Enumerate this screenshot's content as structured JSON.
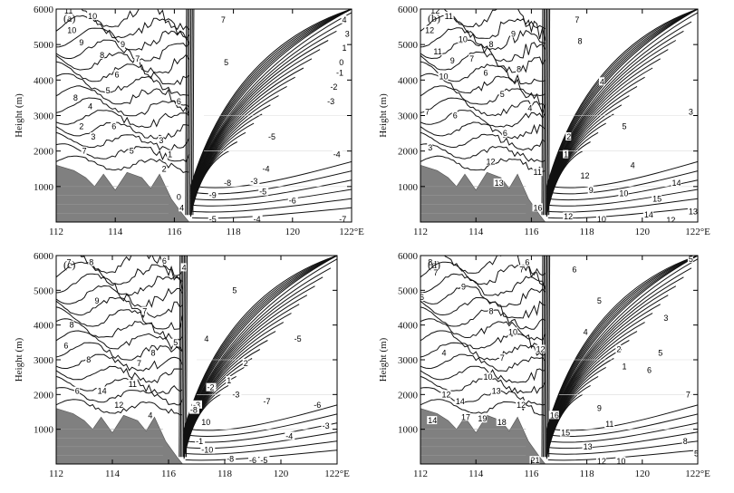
{
  "figure": {
    "ylabel": "Height (m)",
    "xunit": "°E"
  },
  "chart_data": [
    {
      "type": "contour",
      "panel_label": "(a)",
      "ylabel": "Height (m)",
      "xlim": [
        112,
        122
      ],
      "ylim": [
        0,
        6000
      ],
      "xticks": [
        "112",
        "114",
        "116",
        "118",
        "120",
        "122°E"
      ],
      "yticks": [
        "1000",
        "2000",
        "3000",
        "4000",
        "5000",
        "6000"
      ],
      "terrain": [
        [
          112,
          1600
        ],
        [
          112.6,
          1450
        ],
        [
          113,
          1250
        ],
        [
          113.3,
          1000
        ],
        [
          113.6,
          1350
        ],
        [
          114,
          900
        ],
        [
          114.4,
          1400
        ],
        [
          114.9,
          1250
        ],
        [
          115.2,
          950
        ],
        [
          115.5,
          1350
        ],
        [
          115.9,
          650
        ],
        [
          116.3,
          200
        ],
        [
          116.5,
          0
        ]
      ],
      "contour_labels": [
        {
          "text": "11",
          "x": 112.4,
          "y": 5950
        },
        {
          "text": "10",
          "x": 113.2,
          "y": 5800
        },
        {
          "text": "10",
          "x": 112.5,
          "y": 5400
        },
        {
          "text": "9",
          "x": 112.9,
          "y": 5050
        },
        {
          "text": "9",
          "x": 114.3,
          "y": 5000
        },
        {
          "text": "8",
          "x": 113.6,
          "y": 4700
        },
        {
          "text": "7",
          "x": 114.8,
          "y": 4600
        },
        {
          "text": "6",
          "x": 114.1,
          "y": 4150
        },
        {
          "text": "8",
          "x": 112.7,
          "y": 3500
        },
        {
          "text": "5",
          "x": 113.8,
          "y": 3700
        },
        {
          "text": "4",
          "x": 113.2,
          "y": 3250
        },
        {
          "text": "2",
          "x": 112.9,
          "y": 2700
        },
        {
          "text": "6",
          "x": 114.0,
          "y": 2700
        },
        {
          "text": "3",
          "x": 113.3,
          "y": 2400
        },
        {
          "text": "7",
          "x": 113.0,
          "y": 2000
        },
        {
          "text": "5",
          "x": 114.6,
          "y": 2000
        },
        {
          "text": "3",
          "x": 115.6,
          "y": 2300
        },
        {
          "text": "1",
          "x": 115.9,
          "y": 1900
        },
        {
          "text": "2",
          "x": 115.7,
          "y": 1500
        },
        {
          "text": "6",
          "x": 116.2,
          "y": 3400
        },
        {
          "text": "7",
          "x": 117.7,
          "y": 5700
        },
        {
          "text": "5",
          "x": 117.8,
          "y": 4500
        },
        {
          "text": "4",
          "x": 121.8,
          "y": 5700
        },
        {
          "text": "3",
          "x": 121.9,
          "y": 5300
        },
        {
          "text": "1",
          "x": 121.8,
          "y": 4900
        },
        {
          "text": "0",
          "x": 121.7,
          "y": 4500
        },
        {
          "text": "-1",
          "x": 121.6,
          "y": 4200
        },
        {
          "text": "-2",
          "x": 121.4,
          "y": 3800
        },
        {
          "text": "-3",
          "x": 121.3,
          "y": 3400
        },
        {
          "text": "-5",
          "x": 119.3,
          "y": 2400
        },
        {
          "text": "-4",
          "x": 121.5,
          "y": 1900
        },
        {
          "text": "-4",
          "x": 119.1,
          "y": 1500
        },
        {
          "text": "-3",
          "x": 118.7,
          "y": 1150
        },
        {
          "text": "-5",
          "x": 119.0,
          "y": 850
        },
        {
          "text": "-6",
          "x": 120.0,
          "y": 600
        },
        {
          "text": "-8",
          "x": 117.8,
          "y": 1100
        },
        {
          "text": "-9",
          "x": 117.3,
          "y": 750
        },
        {
          "text": "-7",
          "x": 121.7,
          "y": 80
        },
        {
          "text": "-4",
          "x": 118.8,
          "y": 80
        },
        {
          "text": "-5",
          "x": 117.3,
          "y": 80
        },
        {
          "text": "4",
          "x": 116.3,
          "y": 400
        },
        {
          "text": "0",
          "x": 116.2,
          "y": 700
        }
      ]
    },
    {
      "type": "contour",
      "panel_label": "(b)",
      "ylabel": "Height (m)",
      "xlim": [
        112,
        122
      ],
      "ylim": [
        0,
        6000
      ],
      "xticks": [
        "112",
        "114",
        "116",
        "118",
        "120",
        "122°E"
      ],
      "yticks": [
        "1000",
        "2000",
        "3000",
        "4000",
        "5000",
        "6000"
      ],
      "terrain": [
        [
          112,
          1600
        ],
        [
          112.6,
          1450
        ],
        [
          113,
          1250
        ],
        [
          113.3,
          1000
        ],
        [
          113.6,
          1350
        ],
        [
          114,
          900
        ],
        [
          114.4,
          1400
        ],
        [
          114.9,
          1250
        ],
        [
          115.2,
          950
        ],
        [
          115.5,
          1350
        ],
        [
          115.9,
          650
        ],
        [
          116.3,
          200
        ],
        [
          116.5,
          0
        ]
      ],
      "contour_labels": [
        {
          "text": "12",
          "x": 112.5,
          "y": 5950
        },
        {
          "text": "11",
          "x": 113.0,
          "y": 5800
        },
        {
          "text": "12",
          "x": 112.3,
          "y": 5400
        },
        {
          "text": "10",
          "x": 113.5,
          "y": 5150
        },
        {
          "text": "11",
          "x": 112.6,
          "y": 4800
        },
        {
          "text": "9",
          "x": 115.4,
          "y": 5300
        },
        {
          "text": "8",
          "x": 114.6,
          "y": 5000
        },
        {
          "text": "9",
          "x": 113.2,
          "y": 4550
        },
        {
          "text": "7",
          "x": 113.9,
          "y": 4600
        },
        {
          "text": "10",
          "x": 112.8,
          "y": 4100
        },
        {
          "text": "6",
          "x": 114.4,
          "y": 4200
        },
        {
          "text": "8",
          "x": 115.6,
          "y": 4300
        },
        {
          "text": "7",
          "x": 112.3,
          "y": 3100
        },
        {
          "text": "5",
          "x": 115.0,
          "y": 3600
        },
        {
          "text": "6",
          "x": 113.3,
          "y": 3000
        },
        {
          "text": "4",
          "x": 116.0,
          "y": 3200
        },
        {
          "text": "3",
          "x": 112.4,
          "y": 2100
        },
        {
          "text": "12",
          "x": 114.5,
          "y": 1700
        },
        {
          "text": "13",
          "x": 114.8,
          "y": 1100
        },
        {
          "text": "6",
          "x": 115.1,
          "y": 2500
        },
        {
          "text": "11",
          "x": 116.2,
          "y": 1400
        },
        {
          "text": "7",
          "x": 117.7,
          "y": 5700
        },
        {
          "text": "8",
          "x": 117.8,
          "y": 5100
        },
        {
          "text": "4",
          "x": 118.6,
          "y": 3950
        },
        {
          "text": "5",
          "x": 119.4,
          "y": 2700
        },
        {
          "text": "3",
          "x": 121.8,
          "y": 3100
        },
        {
          "text": "2",
          "x": 117.4,
          "y": 2400
        },
        {
          "text": "1",
          "x": 117.3,
          "y": 1900
        },
        {
          "text": "4",
          "x": 119.7,
          "y": 1600
        },
        {
          "text": "12",
          "x": 117.9,
          "y": 1300
        },
        {
          "text": "9",
          "x": 118.2,
          "y": 900
        },
        {
          "text": "10",
          "x": 119.3,
          "y": 800
        },
        {
          "text": "14",
          "x": 121.2,
          "y": 1100
        },
        {
          "text": "15",
          "x": 120.5,
          "y": 650
        },
        {
          "text": "13",
          "x": 121.8,
          "y": 300
        },
        {
          "text": "14",
          "x": 120.2,
          "y": 200
        },
        {
          "text": "12",
          "x": 117.3,
          "y": 150
        },
        {
          "text": "10",
          "x": 118.5,
          "y": 80
        },
        {
          "text": "12",
          "x": 121.0,
          "y": 50
        },
        {
          "text": "16",
          "x": 116.2,
          "y": 400
        }
      ]
    },
    {
      "type": "contour",
      "panel_label": "(c)",
      "ylabel": "Height (m)",
      "xlim": [
        112,
        122
      ],
      "ylim": [
        0,
        6000
      ],
      "xticks": [
        "112",
        "114",
        "116",
        "118",
        "120",
        "122°E"
      ],
      "yticks": [
        "1000",
        "2000",
        "3000",
        "4000",
        "5000",
        "6000"
      ],
      "terrain": [
        [
          112,
          1600
        ],
        [
          112.6,
          1450
        ],
        [
          113,
          1250
        ],
        [
          113.3,
          1000
        ],
        [
          113.6,
          1350
        ],
        [
          114,
          900
        ],
        [
          114.4,
          1400
        ],
        [
          114.9,
          1250
        ],
        [
          115.2,
          950
        ],
        [
          115.5,
          1350
        ],
        [
          115.9,
          650
        ],
        [
          116.3,
          200
        ],
        [
          116.5,
          0
        ]
      ],
      "contour_labels": [
        {
          "text": "7",
          "x": 112.5,
          "y": 5800
        },
        {
          "text": "8",
          "x": 113.3,
          "y": 5800
        },
        {
          "text": "6",
          "x": 115.9,
          "y": 5850
        },
        {
          "text": "4",
          "x": 116.6,
          "y": 5650
        },
        {
          "text": "9",
          "x": 113.5,
          "y": 4700
        },
        {
          "text": "7",
          "x": 115.2,
          "y": 4400
        },
        {
          "text": "5",
          "x": 118.4,
          "y": 5000
        },
        {
          "text": "8",
          "x": 112.6,
          "y": 4000
        },
        {
          "text": "6",
          "x": 112.4,
          "y": 3400
        },
        {
          "text": "8",
          "x": 113.2,
          "y": 3000
        },
        {
          "text": "8",
          "x": 115.5,
          "y": 3200
        },
        {
          "text": "5",
          "x": 116.3,
          "y": 3500
        },
        {
          "text": "6",
          "x": 112.8,
          "y": 2100
        },
        {
          "text": "14",
          "x": 113.6,
          "y": 2100
        },
        {
          "text": "12",
          "x": 114.2,
          "y": 1700
        },
        {
          "text": "11",
          "x": 114.7,
          "y": 2300
        },
        {
          "text": "7",
          "x": 115.0,
          "y": 2900
        },
        {
          "text": "4",
          "x": 115.4,
          "y": 1400
        },
        {
          "text": "4",
          "x": 117.4,
          "y": 3600
        },
        {
          "text": "2",
          "x": 118.8,
          "y": 2900
        },
        {
          "text": "-5",
          "x": 120.6,
          "y": 3600
        },
        {
          "text": "1",
          "x": 118.2,
          "y": 2400
        },
        {
          "text": "-3",
          "x": 118.4,
          "y": 2000
        },
        {
          "text": "-2",
          "x": 117.5,
          "y": 2200
        },
        {
          "text": "-7",
          "x": 119.5,
          "y": 1800
        },
        {
          "text": "-6",
          "x": 121.3,
          "y": 1700
        },
        {
          "text": "-3",
          "x": 121.6,
          "y": 1100
        },
        {
          "text": "-4",
          "x": 120.3,
          "y": 800
        },
        {
          "text": "10",
          "x": 117.3,
          "y": 1200
        },
        {
          "text": "-10",
          "x": 117.3,
          "y": 400
        },
        {
          "text": "-8",
          "x": 118.2,
          "y": 150
        },
        {
          "text": "-5",
          "x": 119.4,
          "y": 100
        },
        {
          "text": "-6",
          "x": 119.0,
          "y": 100
        },
        {
          "text": "-3",
          "x": 117.0,
          "y": 1700
        },
        {
          "text": "-8",
          "x": 116.9,
          "y": 1550
        },
        {
          "text": "-1",
          "x": 117.1,
          "y": 650
        }
      ]
    },
    {
      "type": "contour",
      "panel_label": "(d)",
      "ylabel": "Height (m)",
      "xlim": [
        112,
        122
      ],
      "ylim": [
        0,
        6000
      ],
      "xticks": [
        "112",
        "114",
        "116",
        "118",
        "120",
        "122°E"
      ],
      "yticks": [
        "1000",
        "2000",
        "3000",
        "4000",
        "5000",
        "6000"
      ],
      "terrain": [
        [
          112,
          1600
        ],
        [
          112.6,
          1450
        ],
        [
          113,
          1250
        ],
        [
          113.3,
          1000
        ],
        [
          113.6,
          1350
        ],
        [
          114,
          900
        ],
        [
          114.4,
          1400
        ],
        [
          114.9,
          1250
        ],
        [
          115.2,
          950
        ],
        [
          115.5,
          1350
        ],
        [
          115.9,
          650
        ],
        [
          116.3,
          200
        ],
        [
          116.5,
          0
        ]
      ],
      "contour_labels": [
        {
          "text": "8",
          "x": 112.4,
          "y": 5800
        },
        {
          "text": "7",
          "x": 112.6,
          "y": 5500
        },
        {
          "text": "6",
          "x": 112.1,
          "y": 4800
        },
        {
          "text": "9",
          "x": 113.6,
          "y": 5100
        },
        {
          "text": "8",
          "x": 114.6,
          "y": 4400
        },
        {
          "text": "7",
          "x": 115.7,
          "y": 5600
        },
        {
          "text": "6",
          "x": 115.9,
          "y": 5800
        },
        {
          "text": "10",
          "x": 115.3,
          "y": 3800
        },
        {
          "text": "12",
          "x": 116.3,
          "y": 3300
        },
        {
          "text": "4",
          "x": 112.9,
          "y": 3200
        },
        {
          "text": "7",
          "x": 115.0,
          "y": 3050
        },
        {
          "text": "12",
          "x": 112.9,
          "y": 2000
        },
        {
          "text": "14",
          "x": 113.4,
          "y": 1800
        },
        {
          "text": "13",
          "x": 114.7,
          "y": 2100
        },
        {
          "text": "10",
          "x": 114.4,
          "y": 2500
        },
        {
          "text": "12",
          "x": 115.6,
          "y": 1700
        },
        {
          "text": "17",
          "x": 113.6,
          "y": 1350
        },
        {
          "text": "19",
          "x": 114.2,
          "y": 1300
        },
        {
          "text": "18",
          "x": 114.9,
          "y": 1200
        },
        {
          "text": "14",
          "x": 112.4,
          "y": 1250
        },
        {
          "text": "5",
          "x": 121.8,
          "y": 5900
        },
        {
          "text": "6",
          "x": 117.6,
          "y": 5600
        },
        {
          "text": "5",
          "x": 118.5,
          "y": 4700
        },
        {
          "text": "4",
          "x": 118.0,
          "y": 3800
        },
        {
          "text": "3",
          "x": 120.9,
          "y": 4200
        },
        {
          "text": "2",
          "x": 119.2,
          "y": 3300
        },
        {
          "text": "1",
          "x": 119.4,
          "y": 2800
        },
        {
          "text": "5",
          "x": 120.7,
          "y": 3200
        },
        {
          "text": "6",
          "x": 120.3,
          "y": 2700
        },
        {
          "text": "7",
          "x": 121.7,
          "y": 2000
        },
        {
          "text": "9",
          "x": 118.5,
          "y": 1600
        },
        {
          "text": "11",
          "x": 118.8,
          "y": 1150
        },
        {
          "text": "8",
          "x": 121.6,
          "y": 650
        },
        {
          "text": "13",
          "x": 118.0,
          "y": 500
        },
        {
          "text": "15",
          "x": 117.2,
          "y": 900
        },
        {
          "text": "16",
          "x": 116.8,
          "y": 1400
        },
        {
          "text": "10",
          "x": 119.2,
          "y": 80
        },
        {
          "text": "12",
          "x": 118.5,
          "y": 80
        },
        {
          "text": "21",
          "x": 116.1,
          "y": 100
        },
        {
          "text": "5",
          "x": 122.0,
          "y": 300
        }
      ]
    }
  ]
}
